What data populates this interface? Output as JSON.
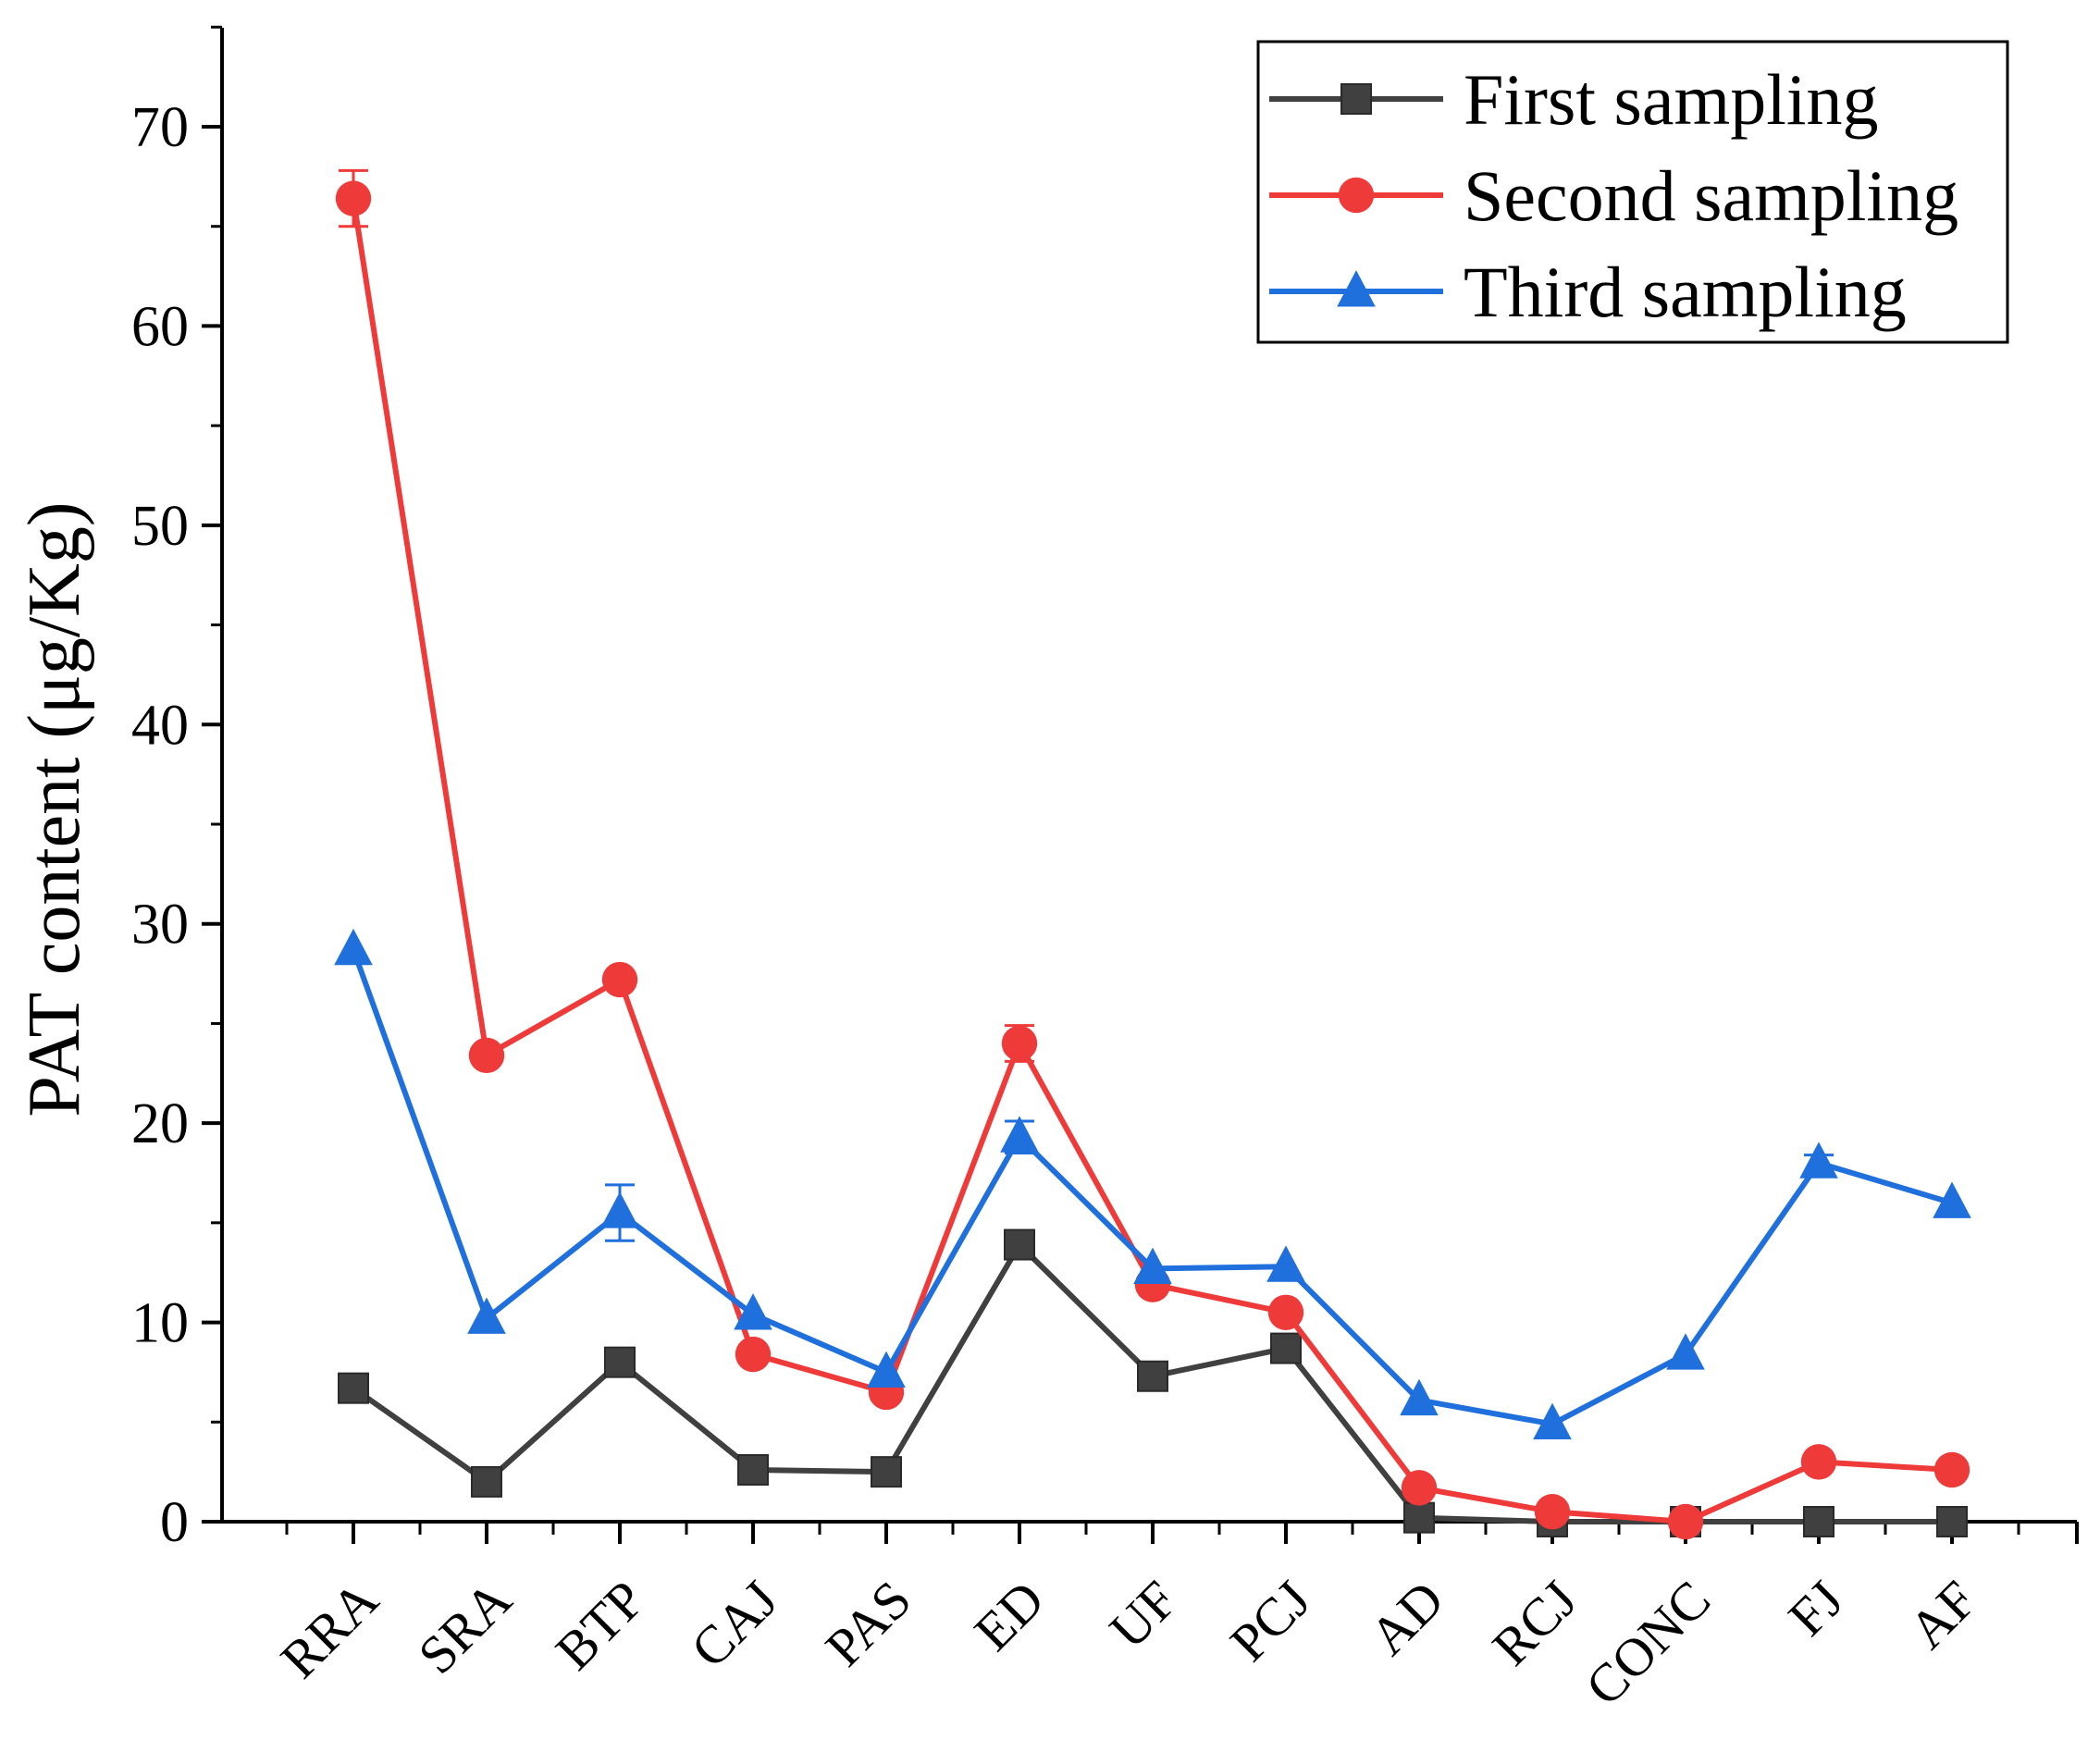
{
  "chart_data": {
    "type": "line",
    "title": "",
    "xlabel": "",
    "ylabel": "PAT content (μg/Kg)",
    "ylim": [
      0,
      75
    ],
    "yticks": [
      0,
      10,
      20,
      30,
      40,
      50,
      60,
      70
    ],
    "grid": false,
    "legend_position": "top-right",
    "categories": [
      "RRA",
      "SRA",
      "BTP",
      "CAJ",
      "PAS",
      "ED",
      "UF",
      "PCJ",
      "AD",
      "RCJ",
      "CONC",
      "FJ",
      "AF"
    ],
    "series": [
      {
        "name": "First sampling",
        "color": "#404040",
        "marker": "square",
        "values": [
          6.7,
          2.0,
          8.0,
          2.6,
          2.5,
          13.9,
          7.3,
          8.7,
          0.2,
          0.0,
          0.0,
          0.0,
          0.0
        ],
        "errors": [
          0,
          0,
          0,
          0,
          0,
          0,
          0,
          0,
          0,
          0,
          0,
          0,
          0
        ]
      },
      {
        "name": "Second sampling",
        "color": "#ef3a3a",
        "marker": "circle",
        "values": [
          66.4,
          23.4,
          27.2,
          8.4,
          6.5,
          24.0,
          11.9,
          10.5,
          1.7,
          0.5,
          0.0,
          3.0,
          2.6
        ],
        "errors": [
          1.4,
          0,
          0,
          0,
          0,
          0.9,
          0,
          0,
          0,
          0,
          0,
          0,
          0
        ]
      },
      {
        "name": "Third sampling",
        "color": "#1f6fdc",
        "marker": "triangle",
        "values": [
          28.7,
          10.2,
          15.5,
          10.4,
          7.5,
          19.3,
          12.7,
          12.8,
          6.1,
          4.9,
          8.4,
          18.0,
          16.0
        ],
        "errors": [
          0,
          0,
          1.4,
          0,
          0,
          0.8,
          0,
          0,
          0,
          0,
          0,
          0.4,
          0
        ]
      }
    ]
  }
}
